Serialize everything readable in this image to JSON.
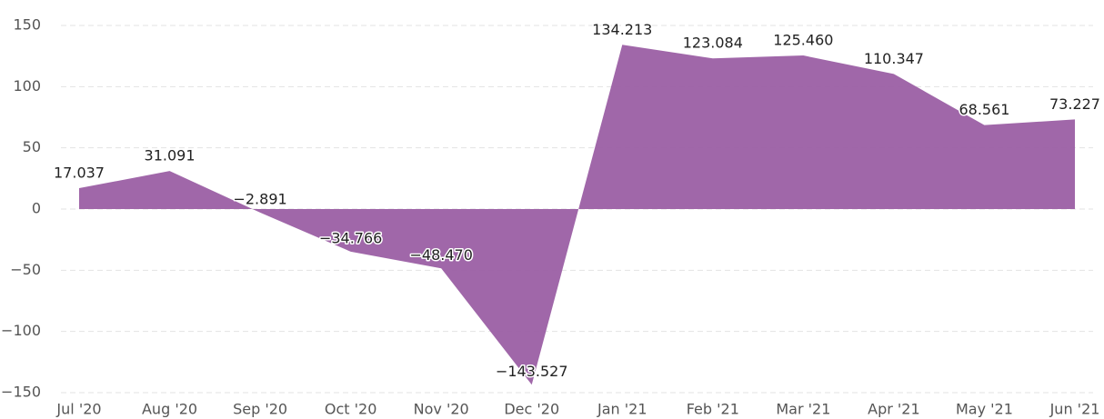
{
  "chart_data": {
    "type": "area",
    "categories": [
      "Jul '20",
      "Aug '20",
      "Sep '20",
      "Oct '20",
      "Nov '20",
      "Dec '20",
      "Jan '21",
      "Feb '21",
      "Mar '21",
      "Apr '21",
      "May '21",
      "Jun '21"
    ],
    "values": [
      17.037,
      31.091,
      -2.891,
      -34.766,
      -48.47,
      -143.527,
      134.213,
      123.084,
      125.46,
      110.347,
      68.561,
      73.227
    ],
    "value_labels": [
      "17.037",
      "31.091",
      "−2.891",
      "−34.766",
      "−48.470",
      "−143.527",
      "134.213",
      "123.084",
      "125.460",
      "110.347",
      "68.561",
      "73.227"
    ],
    "color": "#9b5fa4",
    "ylim": [
      -150,
      150
    ],
    "yticks": [
      {
        "value": -150,
        "label": "−150"
      },
      {
        "value": -100,
        "label": "−100"
      },
      {
        "value": -50,
        "label": "−50"
      },
      0,
      50,
      100,
      150
    ],
    "grid": true
  }
}
